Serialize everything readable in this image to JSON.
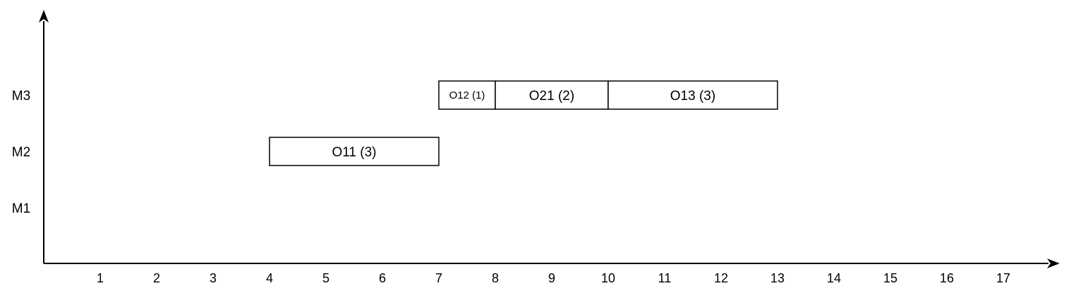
{
  "chart_data": {
    "type": "gantt",
    "x_ticks": [
      1,
      2,
      3,
      4,
      5,
      6,
      7,
      8,
      9,
      10,
      11,
      12,
      13,
      14,
      15,
      16,
      17
    ],
    "xlim": [
      0,
      17
    ],
    "machines": [
      "M1",
      "M2",
      "M3"
    ],
    "operations": [
      {
        "label": "O11 (3)",
        "machine": "M2",
        "start": 4,
        "end": 7
      },
      {
        "label": "O12 (1)",
        "machine": "M3",
        "start": 7,
        "end": 8
      },
      {
        "label": "O21 (2)",
        "machine": "M3",
        "start": 8,
        "end": 10
      },
      {
        "label": "O13 (3)",
        "machine": "M3",
        "start": 10,
        "end": 13
      }
    ]
  }
}
